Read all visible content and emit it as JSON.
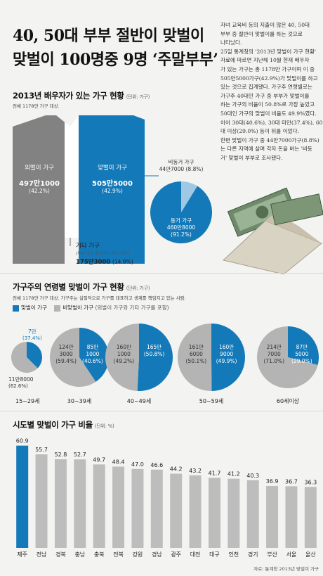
{
  "header": {
    "title_line1": "40, 50대 부부 절반이 맞벌이",
    "title_line2": "맞벌이 100명중 9명 ‘주말부부’"
  },
  "article": {
    "lines": [
      "자녀 교육비 등의 지출이 많은 40, 50대",
      "부부 중 절반이 맞벌이를 하는 것으로",
      "나타났다.",
      "25일 통계청의 '2013년 맞벌이 가구 현황'",
      "자료에 따르면 지난해 10월 현재 배우자",
      "가 있는 가구는 총 1178만 가구이며 이 중",
      "505만5000가구(42.9%)가 맞벌이를 하고",
      "있는 것으로 집계됐다. 가구주 연령별로는",
      "가구주 40대인 가구 중 부부가 맞벌이를",
      "하는 가구의 비율이 50.8%로 가장 높았고",
      "50대인 가구의 맞벌이 비율도 49.9%였다.",
      "이어 30대(40.6%), 30대 미만(37.4%), 60",
      "대 이상(29.0%) 등이 뒤를 이었다.",
      "한편 맞벌이 가구 중 44만7000가구(8.8%)",
      "는 다른 지역에 살며 각자 돈을 버는 '비동",
      "거' 맞벌이 부부로 조사됐다."
    ]
  },
  "section1": {
    "title": "2013년 배우자가 있는 가구 현황",
    "unit": "(단위: 가구)",
    "note": "전체 1178만 가구 대상.",
    "single": {
      "label": "외벌이 가구",
      "value": "497만1000",
      "pct": "(42.2%)"
    },
    "dual": {
      "label": "맞벌이 가구",
      "value": "505만5000",
      "pct": "(42.9%)"
    },
    "other": {
      "label": "기타 가구",
      "sub": "(부부 모두 취업자가 아닌 가구)",
      "value": "175만3000",
      "pct": "(14.9%)"
    },
    "separate": {
      "label": "비동거 가구",
      "value": "44만7000",
      "pct": "(8.8%)"
    },
    "cohabit": {
      "label": "동거 가구",
      "value": "460만8000",
      "pct": "(91.2%)"
    }
  },
  "section2": {
    "title": "가구주의 연령별 맞벌이 가구 현황",
    "unit": "(단위: 가구)",
    "note": "전체 1178만 가구 대상. 가구주는 실질적으로 가구를 대표하고 생계를 책임지고 있는 사람.",
    "legend_dual": "맞벌이 가구",
    "legend_non": "비맞벌이 가구",
    "legend_non_sub": "(외벌이 가구와 기타 가구를 포함)"
  },
  "section3": {
    "title": "시도별 맞벌이 가구 비율",
    "unit": "(단위: %)"
  },
  "footer": {
    "source": "자료: 통계청 2013년 맞벌이 가구"
  },
  "colors": {
    "blue": "#1479b8",
    "gray": "#b4b4b4",
    "dark_gray": "#808080",
    "light_gray": "#c8c8c8"
  },
  "chart_data": [
    {
      "type": "pie",
      "title": "2013년 배우자가 있는 가구 현황",
      "categories": [
        "외벌이 가구",
        "맞벌이 가구",
        "기타 가구"
      ],
      "values": [
        42.2,
        42.9,
        14.9
      ],
      "counts": [
        "497만1000",
        "505만5000",
        "175만3000"
      ]
    },
    {
      "type": "pie",
      "title": "",
      "categories": [
        "비동거 가구",
        "동거 가구"
      ],
      "values": [
        8.8,
        91.2
      ],
      "counts": [
        "44만7000",
        "460만8000"
      ]
    },
    {
      "type": "pie",
      "title": "가구주의 연령별 맞벌이 가구 현황",
      "groups": [
        {
          "age": "15~29세",
          "dual": {
            "count": "7만",
            "pct": 37.4
          },
          "non": {
            "count": "11만8000",
            "pct": 62.6
          }
        },
        {
          "age": "30~39세",
          "dual": {
            "count": "85만 1000",
            "pct": 40.6
          },
          "non": {
            "count": "124만 3000",
            "pct": 59.4
          }
        },
        {
          "age": "40~49세",
          "dual": {
            "count": "165만",
            "pct": 50.8
          },
          "non": {
            "count": "160만 1000",
            "pct": 49.2
          }
        },
        {
          "age": "50~59세",
          "dual": {
            "count": "160만 9000",
            "pct": 49.9
          },
          "non": {
            "count": "161만 6000",
            "pct": 50.1
          }
        },
        {
          "age": "60세이상",
          "dual": {
            "count": "87만 5000",
            "pct": 29.0
          },
          "non": {
            "count": "214만 7000",
            "pct": 71.0
          }
        }
      ]
    },
    {
      "type": "bar",
      "title": "시도별 맞벌이 가구 비율",
      "categories": [
        "제주",
        "전남",
        "경북",
        "충남",
        "충북",
        "전북",
        "강원",
        "경남",
        "광주",
        "대전",
        "대구",
        "인천",
        "경기",
        "부산",
        "서울",
        "울산"
      ],
      "values": [
        60.9,
        55.7,
        52.8,
        52.7,
        49.7,
        48.4,
        47.0,
        46.6,
        44.2,
        43.2,
        41.7,
        41.2,
        40.3,
        36.9,
        36.7,
        36.3
      ],
      "ylim": [
        0,
        65
      ]
    }
  ]
}
